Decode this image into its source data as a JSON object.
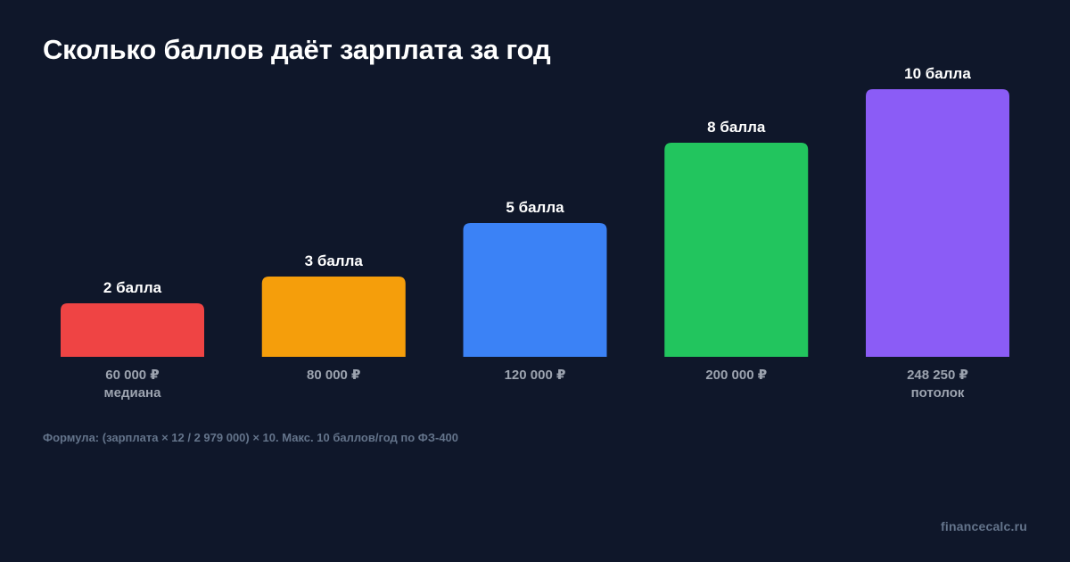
{
  "title": "Сколько баллов даёт зарплата за год",
  "footnote": "Формула: (зарплата × 12 / 2 979 000) × 10. Макс. 10 баллов/год по ФЗ-400",
  "watermark": "financecalc.ru",
  "chart_data": {
    "type": "bar",
    "title": "Сколько баллов даёт зарплата за год",
    "xlabel": "",
    "ylabel": "",
    "ylim": [
      0,
      10
    ],
    "grid": false,
    "categories": [
      "60 000 ₽",
      "80 000 ₽",
      "120 000 ₽",
      "200 000 ₽",
      "248 250 ₽"
    ],
    "category_notes": [
      "медиана",
      "",
      "",
      "",
      "потолок"
    ],
    "values": [
      2,
      3,
      5,
      8,
      10
    ],
    "data_labels": [
      "2 балла",
      "3 балла",
      "5 балла",
      "8 балла",
      "10 балла"
    ],
    "colors": [
      "#ef4444",
      "#f59e0b",
      "#3b82f6",
      "#22c55e",
      "#8b5cf6"
    ]
  }
}
